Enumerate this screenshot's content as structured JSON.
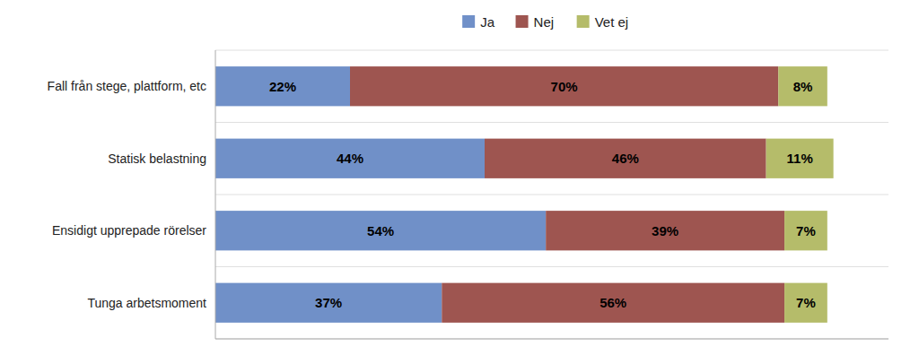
{
  "chart_data": {
    "type": "bar",
    "orientation": "horizontal",
    "stacked": true,
    "categories": [
      "Fall från stege, plattform, etc",
      "Statisk belastning",
      "Ensidigt upprepade rörelser",
      "Tunga arbetsmoment"
    ],
    "series": [
      {
        "name": "Ja",
        "color": "#7090c8",
        "values": [
          22,
          44,
          54,
          37
        ],
        "value_labels": [
          "22%",
          "44%",
          "54%",
          "37%"
        ]
      },
      {
        "name": "Nej",
        "color": "#9e5550",
        "values": [
          70,
          46,
          39,
          56
        ],
        "value_labels": [
          "70%",
          "46%",
          "39%",
          "56%"
        ]
      },
      {
        "name": "Vet ej",
        "color": "#b5bc6a",
        "values": [
          8,
          11,
          7,
          7
        ],
        "value_labels": [
          "8%",
          "11%",
          "7%",
          "7%"
        ]
      }
    ],
    "xlim": [
      0,
      110
    ],
    "data_labels": true,
    "tick_labels": "y",
    "legend": "top"
  }
}
